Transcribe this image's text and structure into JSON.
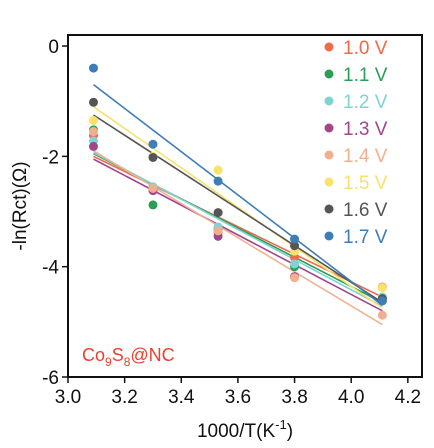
{
  "chart_data": {
    "type": "scatter",
    "xlabel_main": "1000/T(K",
    "xlabel_sup": "-1",
    "xlabel_end": ")",
    "ylabel": "-ln(Rct)(Ω)",
    "xlim": [
      3.0,
      4.25
    ],
    "ylim": [
      -6,
      0.2
    ],
    "x_ticks": [
      3.0,
      3.2,
      3.4,
      3.6,
      3.8,
      4.0,
      4.2
    ],
    "x_tick_labels": [
      "3.0",
      "3.2",
      "3.4",
      "3.6",
      "3.8",
      "4.0",
      "4.2"
    ],
    "y_ticks": [
      0,
      -2,
      -4,
      -6
    ],
    "y_tick_labels": [
      "0",
      "-2",
      "-4",
      "-6"
    ],
    "annotation": {
      "parts": [
        {
          "text": "Co",
          "shift": "normal"
        },
        {
          "text": "9",
          "shift": "sub"
        },
        {
          "text": "S",
          "shift": "normal"
        },
        {
          "text": "8",
          "shift": "sub"
        },
        {
          "text": "@NC",
          "shift": "normal"
        }
      ],
      "color": "#e8402f"
    },
    "legend_position": "top-right",
    "series": [
      {
        "name": "1.0 V",
        "color": "#ee6a4a",
        "x": [
          3.09,
          3.3,
          3.53,
          3.8,
          4.11
        ],
        "y": [
          -1.62,
          -2.62,
          -3.38,
          -3.83,
          -4.37
        ],
        "fit": [
          [
            3.09,
            -2.0
          ],
          [
            4.11,
            -4.55
          ]
        ]
      },
      {
        "name": "1.1 V",
        "color": "#2a9e55",
        "x": [
          3.09,
          3.3,
          3.53,
          3.8,
          4.11
        ],
        "y": [
          -1.52,
          -2.88,
          -3.32,
          -4.0,
          -4.58
        ],
        "fit": [
          [
            3.09,
            -1.95
          ],
          [
            4.11,
            -4.65
          ]
        ]
      },
      {
        "name": "1.2 V",
        "color": "#7fd3d1",
        "x": [
          3.09,
          3.3,
          3.53,
          3.8,
          4.11
        ],
        "y": [
          -1.72,
          -2.55,
          -3.28,
          -3.95,
          -4.55
        ],
        "fit": [
          [
            3.09,
            -1.93
          ],
          [
            4.11,
            -4.72
          ]
        ]
      },
      {
        "name": "1.3 V",
        "color": "#a0468c",
        "x": [
          3.09,
          3.3,
          3.53,
          3.8,
          4.11
        ],
        "y": [
          -1.82,
          -2.62,
          -3.45,
          -4.18,
          -4.62
        ],
        "fit": [
          [
            3.09,
            -2.05
          ],
          [
            4.11,
            -4.8
          ]
        ]
      },
      {
        "name": "1.4 V",
        "color": "#f0b090",
        "x": [
          3.09,
          3.3,
          3.53,
          3.8,
          4.11
        ],
        "y": [
          -1.55,
          -2.58,
          -3.35,
          -4.2,
          -4.88
        ],
        "fit": [
          [
            3.09,
            -1.9
          ],
          [
            4.11,
            -5.05
          ]
        ]
      },
      {
        "name": "1.5 V",
        "color": "#f7e26a",
        "x": [
          3.09,
          3.3,
          3.53,
          3.8,
          4.11
        ],
        "y": [
          -1.35,
          -2.0,
          -2.25,
          -3.72,
          -4.38
        ],
        "fit": [
          [
            3.09,
            -1.1
          ],
          [
            4.11,
            -4.75
          ]
        ]
      },
      {
        "name": "1.6 V",
        "color": "#555555",
        "x": [
          3.09,
          3.3,
          3.53,
          3.8,
          4.11
        ],
        "y": [
          -1.02,
          -2.02,
          -3.02,
          -3.62,
          -4.58
        ],
        "fit": [
          [
            3.09,
            -1.25
          ],
          [
            4.11,
            -4.65
          ]
        ]
      },
      {
        "name": "1.7 V",
        "color": "#3e7db5",
        "x": [
          3.09,
          3.3,
          3.53,
          3.8,
          4.11
        ],
        "y": [
          -0.4,
          -1.78,
          -2.45,
          -3.5,
          -4.62
        ],
        "fit": [
          [
            3.09,
            -0.7
          ],
          [
            4.11,
            -4.7
          ]
        ]
      }
    ]
  }
}
